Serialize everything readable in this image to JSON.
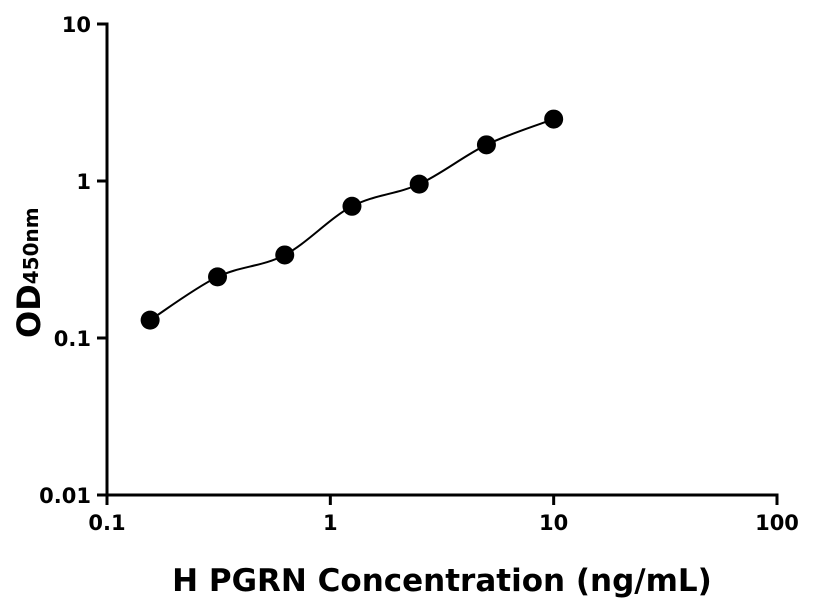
{
  "chart_data": {
    "type": "scatter",
    "title": "",
    "xlabel": "H PGRN Concentration (ng/mL)",
    "ylabel": "OD",
    "ylabel_subscript": "450nm",
    "x_scale": "log",
    "y_scale": "log",
    "xlim": [
      0.1,
      100
    ],
    "ylim": [
      0.01,
      10
    ],
    "x_ticks": [
      0.1,
      1,
      10,
      100
    ],
    "x_tick_labels": [
      "0.1",
      "1",
      "10",
      "100"
    ],
    "y_ticks": [
      0.01,
      0.1,
      1,
      10
    ],
    "y_tick_labels": [
      "0.01",
      "0.1",
      "1",
      "10"
    ],
    "grid": false,
    "legend": "none",
    "series": [
      {
        "x": [
          0.156,
          0.3125,
          0.625,
          1.25,
          2.5,
          5,
          10
        ],
        "y": [
          0.13,
          0.245,
          0.338,
          0.69,
          0.955,
          1.7,
          2.48
        ],
        "marker_color": "#000000",
        "fit_line": true
      }
    ]
  }
}
